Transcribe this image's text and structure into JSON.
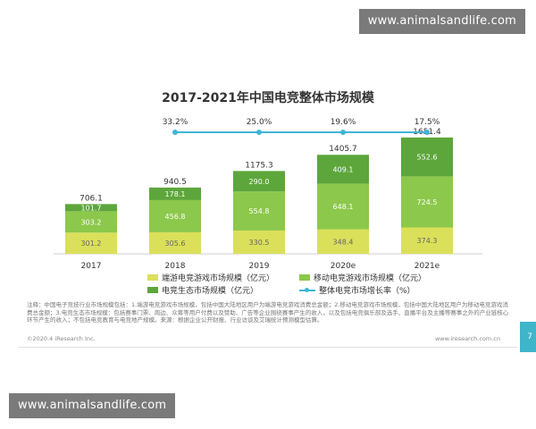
{
  "watermark_top": "www.animalsandlife.com",
  "watermark_bottom": "www.animalsandlife.com",
  "chart_data": {
    "type": "bar",
    "title": "2017-2021年中国电竞整体市场规模",
    "categories": [
      "2017",
      "2018",
      "2019",
      "2020e",
      "2021e"
    ],
    "stacked": true,
    "series": [
      {
        "name": "端游电竞游戏市场规模（亿元）",
        "values": [
          301.2,
          305.6,
          330.5,
          348.4,
          374.3
        ],
        "color": "#dbe05a"
      },
      {
        "name": "移动电竞游戏市场规模（亿元）",
        "values": [
          303.2,
          456.8,
          554.8,
          648.1,
          724.5
        ],
        "color": "#8cc84b"
      },
      {
        "name": "电竞生态市场规模（亿元）",
        "values": [
          101.7,
          178.1,
          290.0,
          409.1,
          552.6
        ],
        "color": "#5da63b"
      }
    ],
    "totals": [
      "706.1",
      "940.5",
      "1175.3",
      "1405.7",
      "1651.4"
    ],
    "segment_labels": [
      [
        "301.2",
        "303.2",
        "101.7"
      ],
      [
        "305.6",
        "456.8",
        "178.1"
      ],
      [
        "330.5",
        "554.8",
        "290.0"
      ],
      [
        "348.4",
        "648.1",
        "409.1"
      ],
      [
        "374.3",
        "724.5",
        "552.6"
      ]
    ],
    "growth": {
      "name": "整体电竞市场增长率（%）",
      "labels": [
        "33.2%",
        "25.0%",
        "19.6%",
        "17.5%"
      ],
      "values": [
        33.2,
        25.0,
        19.6,
        17.5
      ],
      "color": "#3fb5d6"
    },
    "ylim": [
      0,
      1700
    ],
    "grid": false,
    "legend_position": "bottom"
  },
  "note": "注释：中国电子竞技行业市场规模包括：1.端游电竞游戏市场规模，包括中国大陆地区用户为端游电竞游戏消费总金额；2.移动电竞游戏市场规模，包括中国大陆地区用户为移动电竞游戏消费总金额；3.电竞生态市场规模：包括赛事门票、周边、众筹等用户付费以及赞助、广告等企业围绕赛事产生的收入，以及包括电竞俱乐部及选手、直播平台及主播等赛事之外的产业链核心环节产生的收入；不包括电竞教育与电竞地产规模。来源：根据企业公开财报、行业访谈及艾瑞统计预测模型估算。",
  "footer_left": "©2020.4 iResearch Inc.",
  "footer_right": "www.iresearch.com.cn",
  "page_number": "7"
}
